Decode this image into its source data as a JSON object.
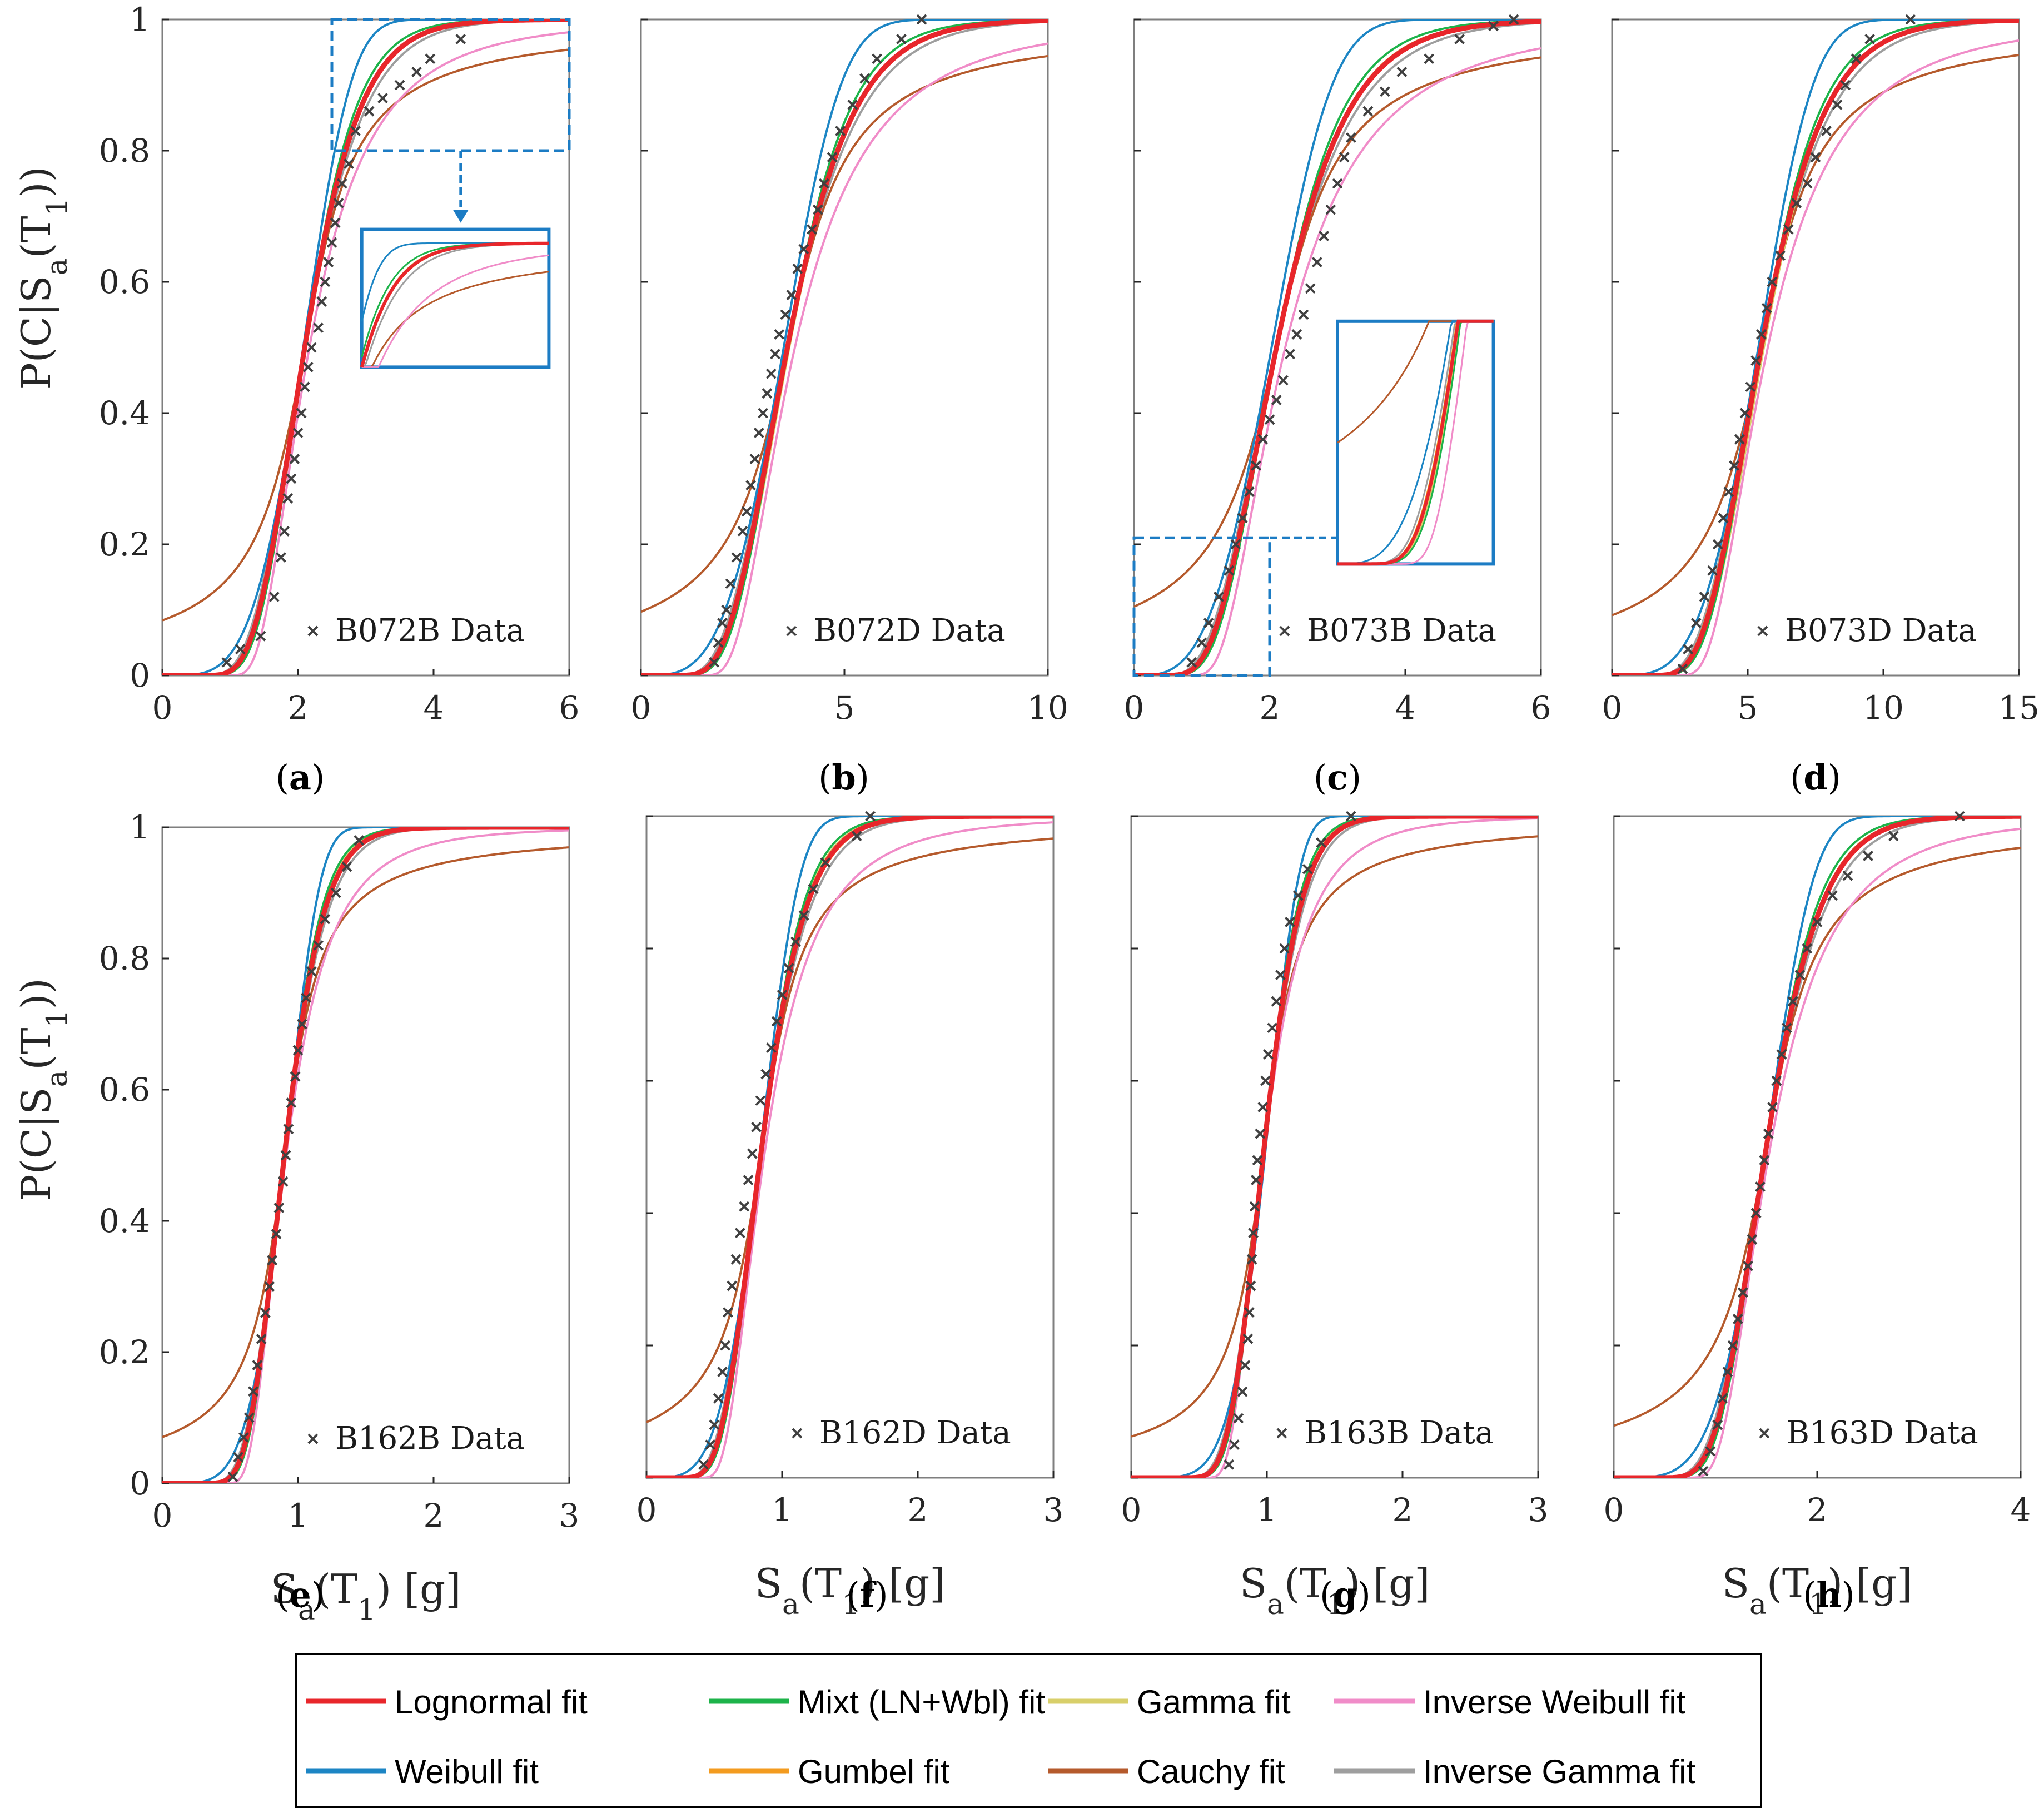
{
  "colors": {
    "lognormal": "#E8262B",
    "mixt": "#1DB34A",
    "gamma": "#D8CF6A",
    "inverse_weibull": "#F08CC8",
    "weibull": "#1C85C4",
    "gumbel": "#F39B1F",
    "cauchy": "#B55A2C",
    "inverse_gamma": "#9E9E9E",
    "data": "#404040",
    "zoom": "#1C7CC4"
  },
  "y_axis_label": "P(C|S_a(T_1))",
  "x_axis_label": "S_a(T_1) [g]",
  "legend": [
    {
      "key": "lognormal",
      "label": "Lognormal fit"
    },
    {
      "key": "mixt",
      "label": "Mixt (LN+Wbl) fit"
    },
    {
      "key": "gamma",
      "label": "Gamma fit"
    },
    {
      "key": "inverse_weibull",
      "label": "Inverse Weibull fit"
    },
    {
      "key": "weibull",
      "label": "Weibull fit"
    },
    {
      "key": "gumbel",
      "label": "Gumbel fit"
    },
    {
      "key": "cauchy",
      "label": "Cauchy fit"
    },
    {
      "key": "inverse_gamma",
      "label": "Inverse Gamma fit"
    }
  ],
  "chart_data": [
    {
      "panel": "(a)",
      "letter": "a",
      "type": "line",
      "data_label": "B072B Data",
      "xlim": [
        0,
        6
      ],
      "ylim": [
        0,
        1
      ],
      "xticks": [
        0,
        2,
        4,
        6
      ],
      "yticks": [
        0,
        0.2,
        0.4,
        0.6,
        0.8,
        1
      ],
      "median": 2.1,
      "beta": 0.3,
      "zoom": "top",
      "data_points": [
        [
          0.95,
          0.02
        ],
        [
          1.15,
          0.04
        ],
        [
          1.45,
          0.06
        ],
        [
          1.65,
          0.12
        ],
        [
          1.75,
          0.18
        ],
        [
          1.8,
          0.22
        ],
        [
          1.85,
          0.27
        ],
        [
          1.9,
          0.3
        ],
        [
          1.95,
          0.33
        ],
        [
          2.0,
          0.37
        ],
        [
          2.05,
          0.4
        ],
        [
          2.1,
          0.44
        ],
        [
          2.15,
          0.47
        ],
        [
          2.2,
          0.5
        ],
        [
          2.3,
          0.53
        ],
        [
          2.35,
          0.57
        ],
        [
          2.4,
          0.6
        ],
        [
          2.45,
          0.63
        ],
        [
          2.5,
          0.66
        ],
        [
          2.55,
          0.69
        ],
        [
          2.6,
          0.72
        ],
        [
          2.65,
          0.75
        ],
        [
          2.75,
          0.78
        ],
        [
          2.85,
          0.83
        ],
        [
          3.05,
          0.86
        ],
        [
          3.25,
          0.88
        ],
        [
          3.5,
          0.9
        ],
        [
          3.75,
          0.92
        ],
        [
          3.95,
          0.94
        ],
        [
          4.4,
          0.97
        ]
      ]
    },
    {
      "panel": "(b)",
      "letter": "b",
      "type": "line",
      "data_label": "B072D Data",
      "xlim": [
        0,
        10
      ],
      "ylim": [
        0,
        1
      ],
      "xticks": [
        0,
        5,
        10
      ],
      "yticks": [
        0,
        0.2,
        0.4,
        0.6,
        0.8,
        1
      ],
      "median": 3.6,
      "beta": 0.35,
      "zoom": "none",
      "data_points": [
        [
          1.8,
          0.02
        ],
        [
          1.9,
          0.05
        ],
        [
          2.0,
          0.08
        ],
        [
          2.1,
          0.1
        ],
        [
          2.2,
          0.14
        ],
        [
          2.35,
          0.18
        ],
        [
          2.5,
          0.22
        ],
        [
          2.6,
          0.25
        ],
        [
          2.7,
          0.29
        ],
        [
          2.8,
          0.33
        ],
        [
          2.9,
          0.37
        ],
        [
          3.0,
          0.4
        ],
        [
          3.1,
          0.43
        ],
        [
          3.2,
          0.46
        ],
        [
          3.3,
          0.49
        ],
        [
          3.4,
          0.52
        ],
        [
          3.55,
          0.55
        ],
        [
          3.7,
          0.58
        ],
        [
          3.85,
          0.62
        ],
        [
          4.0,
          0.65
        ],
        [
          4.2,
          0.68
        ],
        [
          4.35,
          0.71
        ],
        [
          4.5,
          0.75
        ],
        [
          4.7,
          0.79
        ],
        [
          4.9,
          0.83
        ],
        [
          5.2,
          0.87
        ],
        [
          5.5,
          0.91
        ],
        [
          5.8,
          0.94
        ],
        [
          6.4,
          0.97
        ],
        [
          6.9,
          1.0
        ]
      ]
    },
    {
      "panel": "(c)",
      "letter": "c",
      "type": "line",
      "data_label": "B073B Data",
      "xlim": [
        0,
        6
      ],
      "ylim": [
        0,
        1
      ],
      "xticks": [
        0,
        2,
        4,
        6
      ],
      "yticks": [
        0,
        0.2,
        0.4,
        0.6,
        0.8,
        1
      ],
      "median": 2.1,
      "beta": 0.38,
      "zoom": "bottom",
      "data_points": [
        [
          0.85,
          0.02
        ],
        [
          1.0,
          0.05
        ],
        [
          1.1,
          0.08
        ],
        [
          1.25,
          0.12
        ],
        [
          1.4,
          0.16
        ],
        [
          1.5,
          0.2
        ],
        [
          1.6,
          0.24
        ],
        [
          1.7,
          0.28
        ],
        [
          1.8,
          0.32
        ],
        [
          1.9,
          0.36
        ],
        [
          2.0,
          0.39
        ],
        [
          2.1,
          0.42
        ],
        [
          2.2,
          0.45
        ],
        [
          2.3,
          0.49
        ],
        [
          2.4,
          0.52
        ],
        [
          2.5,
          0.55
        ],
        [
          2.6,
          0.59
        ],
        [
          2.7,
          0.63
        ],
        [
          2.8,
          0.67
        ],
        [
          2.9,
          0.71
        ],
        [
          3.0,
          0.75
        ],
        [
          3.1,
          0.79
        ],
        [
          3.2,
          0.82
        ],
        [
          3.45,
          0.86
        ],
        [
          3.7,
          0.89
        ],
        [
          3.95,
          0.92
        ],
        [
          4.35,
          0.94
        ],
        [
          4.8,
          0.97
        ],
        [
          5.3,
          0.99
        ],
        [
          5.6,
          1.0
        ]
      ]
    },
    {
      "panel": "(d)",
      "letter": "d",
      "type": "line",
      "data_label": "B073D Data",
      "xlim": [
        0,
        15
      ],
      "ylim": [
        0,
        1
      ],
      "xticks": [
        0,
        5,
        10,
        15
      ],
      "yticks": [
        0,
        0.2,
        0.4,
        0.6,
        0.8,
        1
      ],
      "median": 5.5,
      "beta": 0.33,
      "zoom": "none",
      "data_points": [
        [
          2.6,
          0.01
        ],
        [
          2.8,
          0.04
        ],
        [
          3.1,
          0.08
        ],
        [
          3.4,
          0.12
        ],
        [
          3.7,
          0.16
        ],
        [
          3.9,
          0.2
        ],
        [
          4.1,
          0.24
        ],
        [
          4.3,
          0.28
        ],
        [
          4.5,
          0.32
        ],
        [
          4.7,
          0.36
        ],
        [
          4.9,
          0.4
        ],
        [
          5.1,
          0.44
        ],
        [
          5.3,
          0.48
        ],
        [
          5.5,
          0.52
        ],
        [
          5.7,
          0.56
        ],
        [
          5.9,
          0.6
        ],
        [
          6.2,
          0.64
        ],
        [
          6.5,
          0.68
        ],
        [
          6.8,
          0.72
        ],
        [
          7.2,
          0.75
        ],
        [
          7.5,
          0.79
        ],
        [
          7.9,
          0.83
        ],
        [
          8.3,
          0.87
        ],
        [
          8.6,
          0.9
        ],
        [
          9.0,
          0.94
        ],
        [
          9.5,
          0.97
        ],
        [
          11.0,
          1.0
        ]
      ]
    },
    {
      "panel": "(e)",
      "letter": "e",
      "type": "line",
      "data_label": "B162B Data",
      "xlim": [
        0,
        3
      ],
      "ylim": [
        0,
        1
      ],
      "xticks": [
        0,
        1,
        2,
        3
      ],
      "yticks": [
        0,
        0.2,
        0.4,
        0.6,
        0.8,
        1
      ],
      "median": 0.9,
      "beta": 0.25,
      "zoom": "none",
      "data_points": [
        [
          0.52,
          0.01
        ],
        [
          0.56,
          0.04
        ],
        [
          0.6,
          0.07
        ],
        [
          0.64,
          0.1
        ],
        [
          0.67,
          0.14
        ],
        [
          0.7,
          0.18
        ],
        [
          0.73,
          0.22
        ],
        [
          0.76,
          0.26
        ],
        [
          0.79,
          0.3
        ],
        [
          0.81,
          0.34
        ],
        [
          0.84,
          0.38
        ],
        [
          0.86,
          0.42
        ],
        [
          0.89,
          0.46
        ],
        [
          0.91,
          0.5
        ],
        [
          0.93,
          0.54
        ],
        [
          0.95,
          0.58
        ],
        [
          0.98,
          0.62
        ],
        [
          1.0,
          0.66
        ],
        [
          1.03,
          0.7
        ],
        [
          1.06,
          0.74
        ],
        [
          1.1,
          0.78
        ],
        [
          1.15,
          0.82
        ],
        [
          1.2,
          0.86
        ],
        [
          1.28,
          0.9
        ],
        [
          1.36,
          0.94
        ],
        [
          1.45,
          0.98
        ]
      ]
    },
    {
      "panel": "(f)",
      "letter": "f",
      "type": "line",
      "data_label": "B162D Data",
      "xlim": [
        0,
        3
      ],
      "ylim": [
        0,
        1
      ],
      "xticks": [
        0,
        1,
        2,
        3
      ],
      "yticks": [
        0,
        0.2,
        0.4,
        0.6,
        0.8,
        1
      ],
      "median": 0.85,
      "beta": 0.3,
      "zoom": "none",
      "data_points": [
        [
          0.42,
          0.02
        ],
        [
          0.47,
          0.05
        ],
        [
          0.5,
          0.08
        ],
        [
          0.53,
          0.12
        ],
        [
          0.56,
          0.16
        ],
        [
          0.58,
          0.2
        ],
        [
          0.6,
          0.25
        ],
        [
          0.63,
          0.29
        ],
        [
          0.66,
          0.33
        ],
        [
          0.69,
          0.37
        ],
        [
          0.72,
          0.41
        ],
        [
          0.75,
          0.45
        ],
        [
          0.78,
          0.49
        ],
        [
          0.81,
          0.53
        ],
        [
          0.84,
          0.57
        ],
        [
          0.88,
          0.61
        ],
        [
          0.92,
          0.65
        ],
        [
          0.96,
          0.69
        ],
        [
          1.0,
          0.73
        ],
        [
          1.05,
          0.77
        ],
        [
          1.1,
          0.81
        ],
        [
          1.16,
          0.85
        ],
        [
          1.23,
          0.89
        ],
        [
          1.32,
          0.93
        ],
        [
          1.55,
          0.97
        ],
        [
          1.65,
          1.0
        ]
      ]
    },
    {
      "panel": "(g)",
      "letter": "g",
      "type": "line",
      "data_label": "B163B Data",
      "xlim": [
        0,
        3
      ],
      "ylim": [
        0,
        1
      ],
      "xticks": [
        0,
        1,
        2,
        3
      ],
      "yticks": [
        0,
        0.2,
        0.4,
        0.6,
        0.8,
        1
      ],
      "median": 0.98,
      "beta": 0.22,
      "zoom": "none",
      "data_points": [
        [
          0.72,
          0.02
        ],
        [
          0.76,
          0.05
        ],
        [
          0.79,
          0.09
        ],
        [
          0.82,
          0.13
        ],
        [
          0.84,
          0.17
        ],
        [
          0.86,
          0.21
        ],
        [
          0.87,
          0.25
        ],
        [
          0.88,
          0.29
        ],
        [
          0.89,
          0.33
        ],
        [
          0.9,
          0.37
        ],
        [
          0.91,
          0.41
        ],
        [
          0.92,
          0.45
        ],
        [
          0.93,
          0.48
        ],
        [
          0.95,
          0.52
        ],
        [
          0.97,
          0.56
        ],
        [
          0.99,
          0.6
        ],
        [
          1.01,
          0.64
        ],
        [
          1.04,
          0.68
        ],
        [
          1.07,
          0.72
        ],
        [
          1.1,
          0.76
        ],
        [
          1.13,
          0.8
        ],
        [
          1.17,
          0.84
        ],
        [
          1.23,
          0.88
        ],
        [
          1.3,
          0.92
        ],
        [
          1.4,
          0.96
        ],
        [
          1.62,
          1.0
        ]
      ]
    },
    {
      "panel": "(h)",
      "letter": "h",
      "type": "line",
      "data_label": "B163D Data",
      "xlim": [
        0,
        4
      ],
      "ylim": [
        0,
        1
      ],
      "xticks": [
        0,
        2,
        4
      ],
      "yticks": [
        0,
        0.2,
        0.4,
        0.6,
        0.8,
        1
      ],
      "median": 1.5,
      "beta": 0.28,
      "zoom": "none",
      "data_points": [
        [
          0.88,
          0.01
        ],
        [
          0.95,
          0.04
        ],
        [
          1.02,
          0.08
        ],
        [
          1.07,
          0.12
        ],
        [
          1.12,
          0.16
        ],
        [
          1.17,
          0.2
        ],
        [
          1.22,
          0.24
        ],
        [
          1.27,
          0.28
        ],
        [
          1.32,
          0.32
        ],
        [
          1.36,
          0.36
        ],
        [
          1.4,
          0.4
        ],
        [
          1.44,
          0.44
        ],
        [
          1.48,
          0.48
        ],
        [
          1.52,
          0.52
        ],
        [
          1.56,
          0.56
        ],
        [
          1.6,
          0.6
        ],
        [
          1.65,
          0.64
        ],
        [
          1.7,
          0.68
        ],
        [
          1.76,
          0.72
        ],
        [
          1.83,
          0.76
        ],
        [
          1.9,
          0.8
        ],
        [
          2.0,
          0.84
        ],
        [
          2.15,
          0.88
        ],
        [
          2.3,
          0.91
        ],
        [
          2.5,
          0.94
        ],
        [
          2.75,
          0.97
        ],
        [
          3.4,
          1.0
        ]
      ]
    }
  ]
}
